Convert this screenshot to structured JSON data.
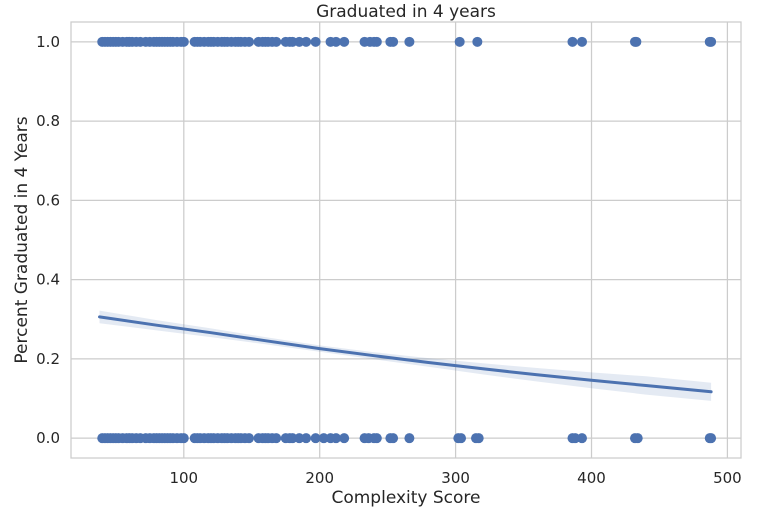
{
  "chart_data": {
    "type": "scatter",
    "title": "Graduated in 4 years",
    "xlabel": "Complexity Score",
    "ylabel": "Percent Graduated in 4 Years",
    "xlim": [
      17,
      510
    ],
    "ylim": [
      -0.05,
      1.05
    ],
    "xticks": [
      100,
      200,
      300,
      400,
      500
    ],
    "yticks": [
      0.0,
      0.2,
      0.4,
      0.6,
      0.8,
      1.0
    ],
    "xtick_labels": [
      "100",
      "200",
      "300",
      "400",
      "500"
    ],
    "ytick_labels": [
      "0.0",
      "0.2",
      "0.4",
      "0.6",
      "0.8",
      "1.0"
    ],
    "grid": true,
    "colors": {
      "points": "#4c72b0",
      "line": "#4c72b0",
      "band": "#4c72b0",
      "grid": "#cccccc"
    },
    "points": {
      "x_values_at_1": [
        40,
        42,
        44,
        46,
        48,
        50,
        52,
        55,
        58,
        60,
        62,
        65,
        68,
        72,
        75,
        78,
        80,
        82,
        84,
        86,
        88,
        90,
        92,
        95,
        98,
        100,
        108,
        110,
        112,
        115,
        118,
        120,
        122,
        125,
        128,
        130,
        132,
        135,
        138,
        140,
        142,
        145,
        148,
        155,
        158,
        160,
        162,
        165,
        168,
        175,
        178,
        180,
        185,
        190,
        197,
        208,
        212,
        218,
        233,
        237,
        240,
        242,
        252,
        254,
        266,
        303,
        316,
        386,
        393,
        432,
        433,
        487,
        488
      ],
      "x_values_at_0": [
        40,
        42,
        44,
        46,
        48,
        50,
        52,
        55,
        58,
        60,
        62,
        65,
        68,
        72,
        75,
        78,
        80,
        82,
        84,
        86,
        88,
        90,
        92,
        95,
        98,
        100,
        108,
        110,
        112,
        115,
        118,
        120,
        122,
        125,
        128,
        130,
        132,
        135,
        138,
        140,
        142,
        145,
        148,
        155,
        158,
        160,
        162,
        165,
        168,
        175,
        178,
        180,
        185,
        190,
        197,
        203,
        208,
        212,
        218,
        233,
        236,
        240,
        242,
        252,
        254,
        266,
        302,
        304,
        315,
        317,
        386,
        388,
        393,
        432,
        434,
        487,
        488
      ]
    },
    "regression_line": {
      "x": [
        38,
        80,
        120,
        160,
        200,
        240,
        280,
        320,
        360,
        400,
        440,
        488
      ],
      "y": [
        0.306,
        0.285,
        0.266,
        0.246,
        0.226,
        0.208,
        0.191,
        0.175,
        0.16,
        0.146,
        0.133,
        0.117
      ],
      "band_upper": [
        0.322,
        0.298,
        0.277,
        0.255,
        0.234,
        0.217,
        0.202,
        0.189,
        0.177,
        0.166,
        0.156,
        0.14
      ],
      "band_lower": [
        0.29,
        0.272,
        0.255,
        0.237,
        0.218,
        0.199,
        0.18,
        0.161,
        0.143,
        0.126,
        0.11,
        0.094
      ]
    }
  }
}
